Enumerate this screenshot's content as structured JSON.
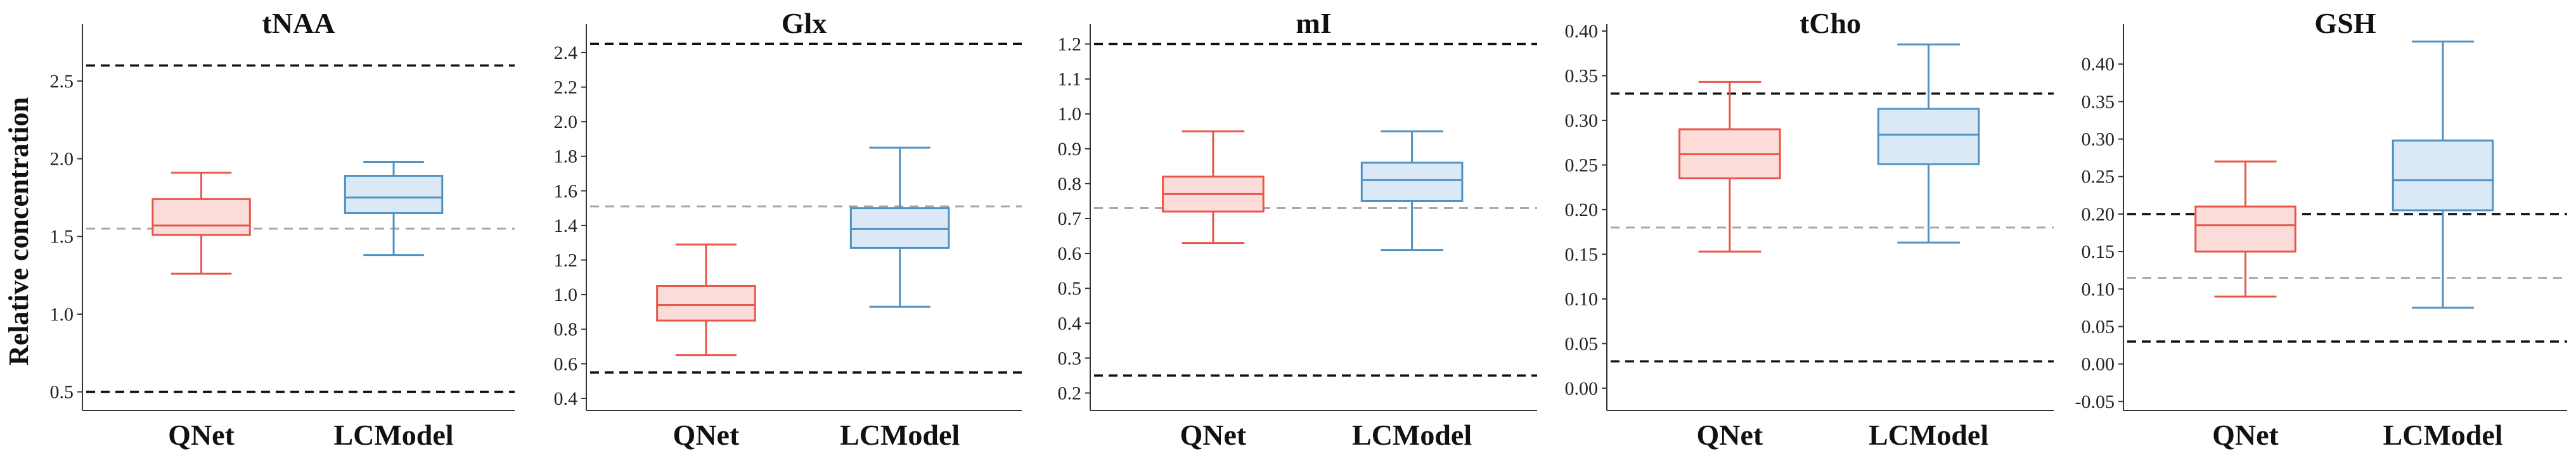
{
  "figure": {
    "ylabel": "Relative concentration"
  },
  "colors": {
    "qnet_stroke": "#e8574a",
    "qnet_fill": "#fbdcd9",
    "lcmodel_stroke": "#4f93c4",
    "lcmodel_fill": "#dbe8f5",
    "bound_line": "#111111",
    "reference_line": "#a8a8a8"
  },
  "chart_data": [
    {
      "type": "box",
      "title": "tNAA",
      "categories": [
        "QNet",
        "LCModel"
      ],
      "yticks": [
        "0.5",
        "1.0",
        "1.5",
        "2.0",
        "2.5"
      ],
      "ylim": [
        0.38,
        2.85
      ],
      "series": [
        {
          "whisker_low": 1.26,
          "q1": 1.51,
          "median": 1.57,
          "q3": 1.74,
          "whisker_high": 1.91
        },
        {
          "whisker_low": 1.38,
          "q1": 1.65,
          "median": 1.75,
          "q3": 1.89,
          "whisker_high": 1.98
        }
      ],
      "reference_lines": {
        "upper_bound": 2.6,
        "lower_bound": 0.5,
        "reference": 1.55
      }
    },
    {
      "type": "box",
      "title": "Glx",
      "categories": [
        "QNet",
        "LCModel"
      ],
      "yticks": [
        "0.4",
        "0.6",
        "0.8",
        "1.0",
        "1.2",
        "1.4",
        "1.6",
        "1.8",
        "2.0",
        "2.2",
        "2.4"
      ],
      "ylim": [
        0.33,
        2.55
      ],
      "series": [
        {
          "whisker_low": 0.65,
          "q1": 0.85,
          "median": 0.94,
          "q3": 1.05,
          "whisker_high": 1.29
        },
        {
          "whisker_low": 0.93,
          "q1": 1.27,
          "median": 1.38,
          "q3": 1.5,
          "whisker_high": 1.85
        }
      ],
      "reference_lines": {
        "upper_bound": 2.45,
        "lower_bound": 0.55,
        "reference": 1.51
      }
    },
    {
      "type": "box",
      "title": "mI",
      "categories": [
        "QNet",
        "LCModel"
      ],
      "yticks": [
        "0.2",
        "0.3",
        "0.4",
        "0.5",
        "0.6",
        "0.7",
        "0.8",
        "0.9",
        "1.0",
        "1.1",
        "1.2"
      ],
      "ylim": [
        0.15,
        1.25
      ],
      "series": [
        {
          "whisker_low": 0.63,
          "q1": 0.72,
          "median": 0.77,
          "q3": 0.82,
          "whisker_high": 0.95
        },
        {
          "whisker_low": 0.61,
          "q1": 0.75,
          "median": 0.81,
          "q3": 0.86,
          "whisker_high": 0.95
        }
      ],
      "reference_lines": {
        "upper_bound": 1.2,
        "lower_bound": 0.25,
        "reference": 0.73
      }
    },
    {
      "type": "box",
      "title": "tCho",
      "categories": [
        "QNet",
        "LCModel"
      ],
      "yticks": [
        "0.00",
        "0.05",
        "0.10",
        "0.15",
        "0.20",
        "0.25",
        "0.30",
        "0.35",
        "0.40"
      ],
      "ylim": [
        -0.025,
        0.405
      ],
      "series": [
        {
          "whisker_low": 0.153,
          "q1": 0.235,
          "median": 0.262,
          "q3": 0.29,
          "whisker_high": 0.343
        },
        {
          "whisker_low": 0.163,
          "q1": 0.251,
          "median": 0.284,
          "q3": 0.313,
          "whisker_high": 0.385
        }
      ],
      "reference_lines": {
        "upper_bound": 0.33,
        "lower_bound": 0.03,
        "reference": 0.18
      }
    },
    {
      "type": "box",
      "title": "GSH",
      "categories": [
        "QNet",
        "LCModel"
      ],
      "yticks": [
        "-0.05",
        "0.00",
        "0.05",
        "0.10",
        "0.15",
        "0.20",
        "0.25",
        "0.30",
        "0.35",
        "0.40"
      ],
      "ylim": [
        -0.062,
        0.45
      ],
      "series": [
        {
          "whisker_low": 0.09,
          "q1": 0.15,
          "median": 0.185,
          "q3": 0.21,
          "whisker_high": 0.27
        },
        {
          "whisker_low": 0.075,
          "q1": 0.205,
          "median": 0.245,
          "q3": 0.298,
          "whisker_high": 0.43
        }
      ],
      "reference_lines": {
        "upper_bound": 0.2,
        "lower_bound": 0.03,
        "reference": 0.115
      }
    }
  ]
}
